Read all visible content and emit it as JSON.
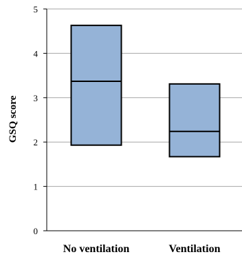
{
  "chart_data": {
    "type": "box",
    "ylabel": "GSQ score",
    "xlabel": "",
    "ylim": [
      0,
      5
    ],
    "yticks": [
      0,
      1,
      2,
      3,
      4,
      5
    ],
    "grid": true,
    "categories": [
      "No ventilation",
      "Ventilation"
    ],
    "boxes": [
      {
        "category": "No ventilation",
        "q1": 1.93,
        "median": 3.37,
        "q3": 4.63
      },
      {
        "category": "Ventilation",
        "q1": 1.67,
        "median": 2.24,
        "q3": 3.31
      }
    ]
  },
  "colors": {
    "box_fill": "#95b3d7",
    "box_stroke": "#000000",
    "grid": "#a6a6a6",
    "axis": "#000000"
  }
}
